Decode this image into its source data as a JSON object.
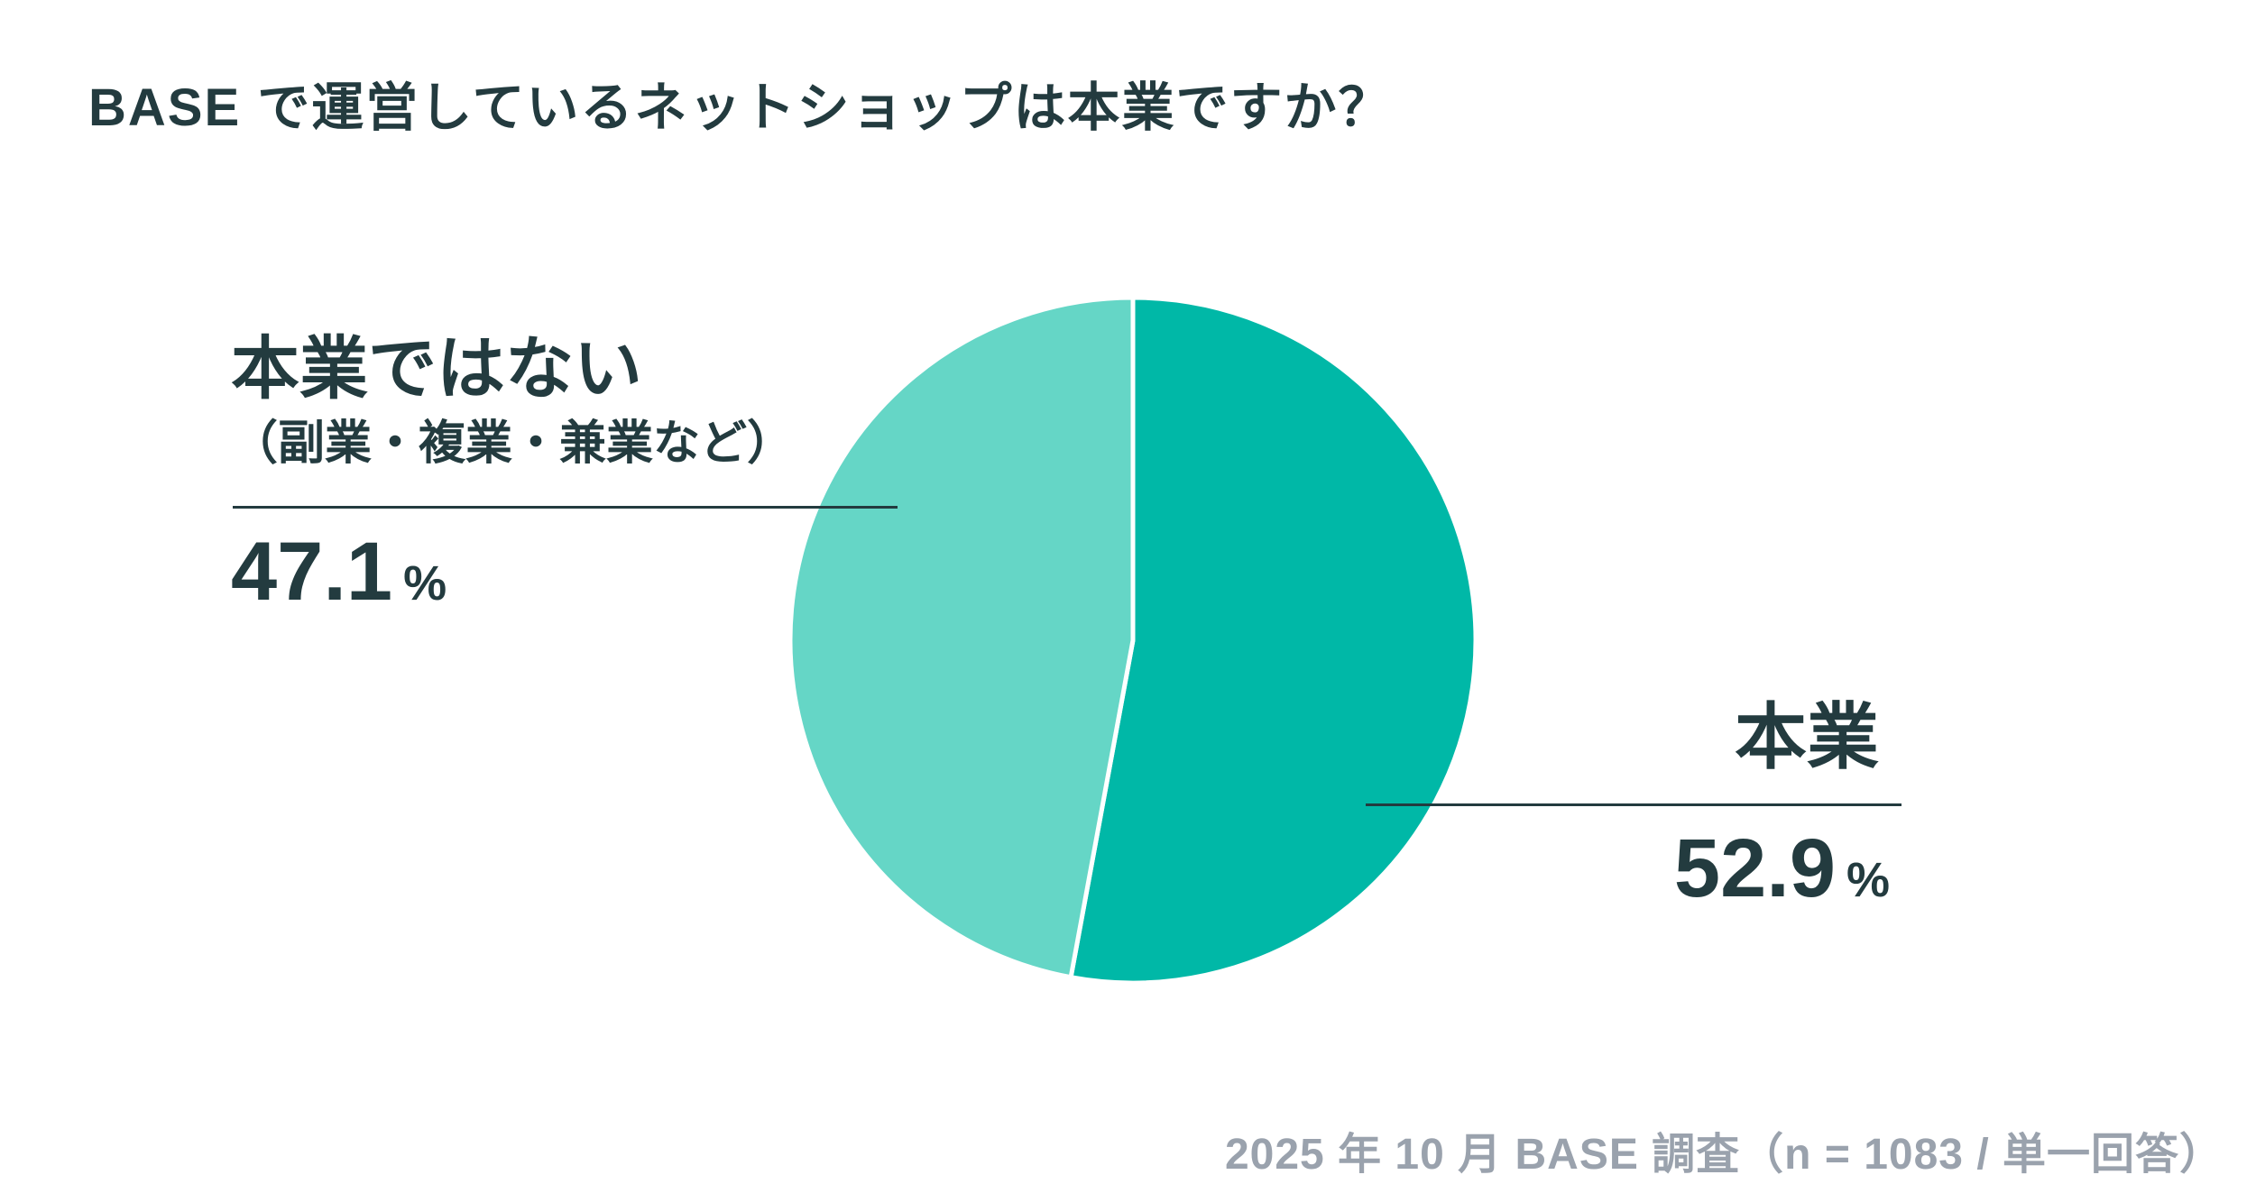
{
  "page": {
    "background_color": "#FFFFFF",
    "text_color": "#233B3F",
    "muted_text_color": "#9AA2AD"
  },
  "header": {
    "title": "BASE で運営しているネットショップは本業ですか？"
  },
  "chart_data": {
    "type": "pie",
    "title": "BASE で運営しているネットショップは本業ですか？",
    "categories": [
      "本業",
      "本業ではない（副業・複業・兼業など）"
    ],
    "values": [
      52.9,
      47.1
    ],
    "unit": "%",
    "colors": [
      "#00B8A7",
      "#65D6C6"
    ],
    "start_angle_deg": 0,
    "direction": "clockwise",
    "divider_color": "#FFFFFF",
    "divider_width": 5,
    "legend_position": "none",
    "label_style": "leader-line annotations",
    "source_note": "2025 年 10 月 BASE 調査（n = 1083 / 単一回答）"
  },
  "annotations": {
    "right": {
      "label": "本業",
      "value": "52.9",
      "unit": "%"
    },
    "left": {
      "label": "本業ではない",
      "sublabel": "（副業・複業・兼業など）",
      "value": "47.1",
      "unit": "%"
    }
  },
  "footer": {
    "source_note": "2025 年 10 月 BASE 調査（n = 1083 / 単一回答）"
  }
}
